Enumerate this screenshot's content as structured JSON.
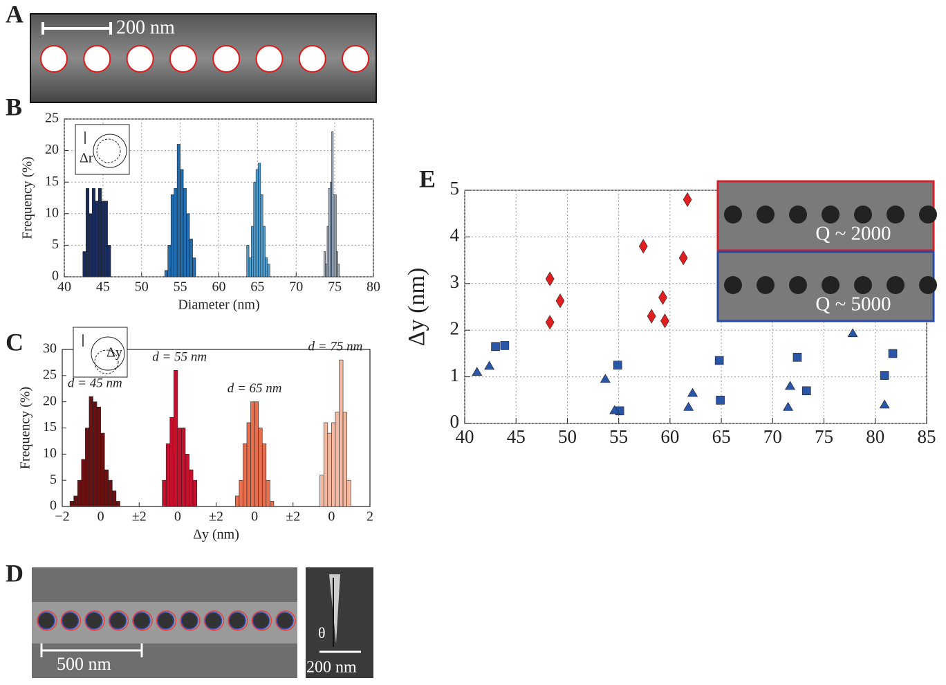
{
  "panel_letters": [
    "A",
    "B",
    "C",
    "D",
    "E"
  ],
  "panel_a": {
    "scale_bar": "200 nm"
  },
  "panel_d": {
    "scale_bar_left": "500 nm",
    "scale_bar_right": "200 nm",
    "angle": "θ"
  },
  "chart_data": [
    {
      "type": "histogram",
      "xlabel": "Diameter (nm)",
      "ylabel": "Frequency (%)",
      "inset_label": "Δr",
      "xlim": [
        40,
        80
      ],
      "xticks": [
        40,
        45,
        50,
        55,
        60,
        65,
        70,
        75,
        80
      ],
      "ylim": [
        0,
        25
      ],
      "yticks": [
        0,
        5,
        10,
        15,
        20,
        25
      ],
      "grid": true,
      "series": [
        {
          "color": "#1a2c5e",
          "bins": [
            42.4,
            42.8,
            43.2,
            43.6,
            44.0,
            44.4,
            44.8,
            45.2,
            45.6,
            46.0
          ],
          "values": [
            4,
            14,
            10,
            14,
            12,
            14,
            12,
            12,
            5
          ]
        },
        {
          "color": "#1f6db3",
          "bins": [
            53.0,
            53.4,
            53.8,
            54.2,
            54.6,
            55.0,
            55.4,
            55.8,
            56.2,
            56.6,
            57.0
          ],
          "values": [
            1,
            5,
            13,
            14,
            21,
            17,
            14,
            10,
            6,
            3
          ]
        },
        {
          "color": "#4a9fd4",
          "bins": [
            63.6,
            63.9,
            64.2,
            64.5,
            64.8,
            65.1,
            65.4,
            65.7,
            66.0,
            66.3,
            66.6
          ],
          "values": [
            5,
            3,
            8,
            15,
            17,
            18,
            13,
            8,
            3,
            2
          ]
        },
        {
          "color": "#9fb0c4",
          "bins": [
            73.6,
            73.8,
            74.0,
            74.2,
            74.4,
            74.6,
            74.8,
            75.0,
            75.2,
            75.4,
            75.6
          ],
          "values": [
            4,
            2,
            8,
            14,
            15,
            23,
            13,
            13,
            4,
            2
          ]
        }
      ]
    },
    {
      "type": "histogram",
      "xlabel": "Δy (nm)",
      "ylabel": "Frequency (%)",
      "inset_label": "Δy",
      "xlim": [
        -2,
        14
      ],
      "xticks": [
        {
          "value": -2,
          "label": "−2"
        },
        0,
        {
          "value": 2,
          "label": "±2"
        },
        {
          "value": 4,
          "label": "0"
        },
        {
          "value": 6,
          "label": "±2"
        },
        {
          "value": 8,
          "label": "0"
        },
        {
          "value": 10,
          "label": "±2"
        },
        {
          "value": 12,
          "label": "0"
        },
        {
          "value": 14,
          "label": "2"
        }
      ],
      "ylim": [
        0,
        30
      ],
      "yticks": [
        0,
        5,
        10,
        15,
        20,
        25,
        30
      ],
      "grid": false,
      "series": [
        {
          "name": "d = 45 nm",
          "color": "#6b1010",
          "bins": [
            -1.6,
            -1.4,
            -1.2,
            -1.0,
            -0.8,
            -0.6,
            -0.4,
            -0.2,
            0.0,
            0.2,
            0.4,
            0.6,
            0.8,
            1.0
          ],
          "values": [
            1,
            2,
            5,
            9,
            15,
            21,
            20,
            19,
            14,
            7,
            5,
            3,
            1
          ]
        },
        {
          "name": "d = 55 nm",
          "color": "#c8102e",
          "bins": [
            3.2,
            3.4,
            3.6,
            3.8,
            4.0,
            4.2,
            4.4,
            4.6,
            4.8,
            5.0
          ],
          "values": [
            5,
            12,
            17,
            26,
            15,
            15,
            10,
            7,
            5
          ]
        },
        {
          "name": "d = 65 nm",
          "color": "#e8704f",
          "bins": [
            7.0,
            7.2,
            7.4,
            7.6,
            7.8,
            8.0,
            8.2,
            8.4,
            8.6,
            8.8,
            9.0
          ],
          "values": [
            2,
            5,
            12,
            16,
            20,
            20,
            15,
            12,
            5,
            1
          ]
        },
        {
          "name": "d = 75 nm",
          "color": "#f5b8a0",
          "bins": [
            11.4,
            11.6,
            11.8,
            12.0,
            12.2,
            12.4,
            12.6,
            12.8,
            13.0
          ],
          "values": [
            6,
            16,
            14,
            16,
            18,
            28,
            18,
            5
          ]
        }
      ]
    },
    {
      "type": "scatter",
      "ylabel": "Δy (nm)",
      "xlim": [
        40,
        85
      ],
      "xticks": [
        40,
        45,
        50,
        55,
        60,
        65,
        70,
        75,
        80,
        85
      ],
      "ylim": [
        0,
        5
      ],
      "yticks": [
        0,
        1,
        2,
        3,
        4,
        5
      ],
      "grid": true,
      "insets": [
        {
          "label": "Q ~ 2000",
          "color": "#d0202a"
        },
        {
          "label": "Q ~ 5000",
          "color": "#2a4aa0"
        }
      ],
      "series": [
        {
          "marker": "diamond",
          "color": "#e02020",
          "x": [
            48.3,
            49.3,
            48.3,
            57.4,
            58.2,
            59.3,
            59.5,
            61.3,
            61.7
          ],
          "values": [
            3.1,
            2.63,
            2.17,
            3.8,
            2.3,
            2.7,
            2.2,
            3.55,
            4.8
          ]
        },
        {
          "marker": "square",
          "color": "#2a56a8",
          "x": [
            43,
            43.9,
            54.9,
            55.1,
            64.8,
            64.9,
            72.4,
            73.3,
            80.9,
            81.7
          ],
          "values": [
            1.65,
            1.67,
            1.25,
            0.27,
            1.35,
            0.5,
            1.42,
            0.7,
            1.03,
            1.5
          ]
        },
        {
          "marker": "triangle",
          "color": "#2a56a8",
          "x": [
            41.2,
            42.4,
            53.7,
            54.6,
            61.8,
            62.2,
            71.5,
            71.7,
            77.8,
            80.9
          ],
          "values": [
            1.1,
            1.23,
            0.95,
            0.28,
            0.35,
            0.65,
            0.35,
            0.8,
            1.93,
            0.4
          ]
        }
      ]
    }
  ]
}
